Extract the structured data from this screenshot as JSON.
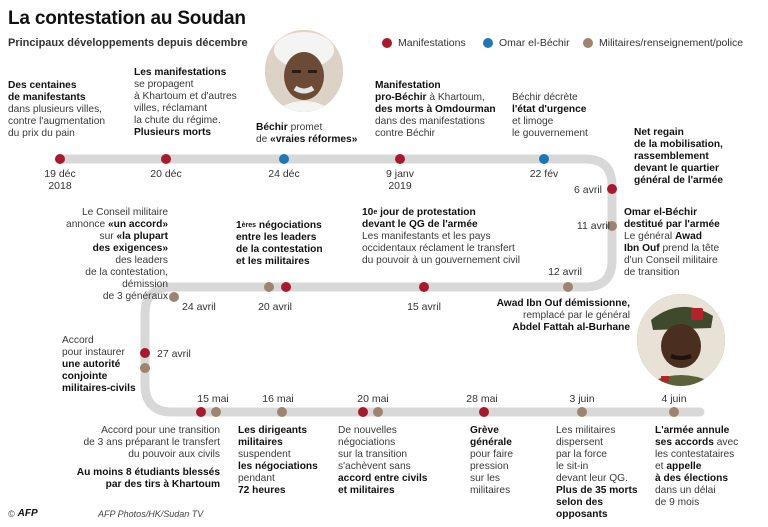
{
  "header": {
    "title": "La contestation au Soudan",
    "subtitle": "Principaux développements depuis décembre"
  },
  "legend": [
    {
      "label": "Manifestations",
      "color": "#a6192e"
    },
    {
      "label": "Omar el-Béchir",
      "color": "#1f77b4"
    },
    {
      "label": "Militaires/renseignement/police",
      "color": "#9e8470"
    }
  ],
  "colors": {
    "line": "#d8d8d8",
    "manifestation": "#a6192e",
    "bechir": "#1f77b4",
    "militaire": "#9e8470"
  },
  "dates": {
    "d19dec": "19 déc",
    "d2018": "2018",
    "d20dec": "20 déc",
    "d24dec": "24 déc",
    "d9janv": "9 janv",
    "d2019": "2019",
    "d22fev": "22 fév",
    "d6avril": "6 avril",
    "d11avril": "11 avril",
    "d12avril": "12 avril",
    "d15avril": "15 avril",
    "d20avril": "20 avril",
    "d24avril": "24 avril",
    "d27avril": "27 avril",
    "d15mai": "15 mai",
    "d16mai": "16 mai",
    "d20mai": "20 mai",
    "d28mai": "28 mai",
    "d3juin": "3 juin",
    "d4juin": "4 juin"
  },
  "events": {
    "e19dec": {
      "b1": "Des centaines",
      "b2": "de manifestants",
      "t3": "dans plusieurs villes,",
      "t4": "contre l'augmentation",
      "t5": "du prix du pain"
    },
    "e20dec": {
      "b1": "Les manifestations",
      "t2": "se propagent",
      "t3": "à Khartoum et d'autres",
      "t4": "villes, réclamant",
      "t5": "la chute du régime.",
      "b6": "Plusieurs morts"
    },
    "e24dec": {
      "b1": "Béchir",
      "t1": "promet",
      "t2": "de ",
      "b2": "«vraies réformes»"
    },
    "e9janv": {
      "b1": "Manifestation",
      "b2": "pro-Béchir",
      "t2": "à Khartoum,",
      "b3": "des morts à Omdourman",
      "t4": "dans des manifestations",
      "t5": "contre Béchir"
    },
    "e22fev": {
      "t1": "Béchir décrète",
      "b2": "l'état d'urgence",
      "t3": "et limoge",
      "t4": "le gouvernement"
    },
    "e6avril": {
      "b1": "Net regain",
      "b2": "de la mobilisation,",
      "b3": "rassemblement",
      "b4": "devant le quartier",
      "b5": "général de l'armée"
    },
    "e11avril": {
      "b1": "Omar el-Béchir",
      "b2": "destitué par l'armée",
      "t3": "Le général ",
      "b3": "Awad",
      "b4": "Ibn Ouf",
      "t4": " prend la tête",
      "t5": "d'un Conseil militaire",
      "t6": "de transition"
    },
    "e12avril": {
      "b1": "Awad Ibn Ouf démissionne,",
      "t2": "remplacé par le général",
      "b3": "Abdel Fattah al-Burhane"
    },
    "e15avril": {
      "b1a": "10",
      "sup": "e",
      "b1b": " jour de protestation",
      "b2": "devant le QG de l'armée",
      "t3": "Les manifestants et les pays",
      "t4": "occidentaux réclament le transfert",
      "t5": "du pouvoir à un gouvernement civil"
    },
    "e20avril": {
      "b1a": "1",
      "sup": "ères",
      "b1b": " négociations",
      "b2": "entre les leaders",
      "b3": "de la contestation",
      "b4": "et les militaires"
    },
    "e24avril": {
      "t1": "Le Conseil militaire",
      "t2": "annonce ",
      "b2": "«un accord»",
      "t3": "sur ",
      "b3": "«la plupart",
      "b4": "des exigences»",
      "t5": "des leaders",
      "t6": "de la contestation,",
      "t7": "démission",
      "t8": "de 3 généraux"
    },
    "e27avril": {
      "t1": "Accord",
      "t2": "pour instaurer",
      "b3": "une autorité",
      "b4": "conjointe",
      "b5": "militaires-civils"
    },
    "e15mai": {
      "t1": "Accord pour une transition",
      "t2": "de 3 ans préparant le transfert",
      "t3": "du pouvoir aux civils",
      "b4": "Au moins 8 étudiants blessés",
      "b5": "par des tirs à Khartoum"
    },
    "e16mai": {
      "b1": "Les dirigeants",
      "b2": "militaires",
      "t3": "suspendent",
      "b4": "les négociations",
      "t5": "pendant",
      "b6": "72 heures"
    },
    "e20mai": {
      "t1": "De nouvelles",
      "t2": "négociations",
      "t3": "sur la transition",
      "t4": "s'achèvent sans",
      "b5": "accord entre civils",
      "b6": "et militaires"
    },
    "e28mai": {
      "b1": "Grève",
      "b2": "générale",
      "t3": "pour faire",
      "t4": "pression",
      "t5": "sur les",
      "t6": "militaires"
    },
    "e3juin": {
      "t1": "Les militaires",
      "t2": "dispersent",
      "t3": "par la force",
      "t4": "le sit-in",
      "t5": "devant leur QG.",
      "b6": "Plus de 35 morts",
      "b7": "selon des",
      "b8": "opposants"
    },
    "e4juin": {
      "b1": "L'armée annule",
      "b2": "ses accords",
      "t2": " avec",
      "t3": "les contestataires",
      "t4": "et ",
      "b4": "appelle",
      "b5": "à des élections",
      "t6": "dans un délai",
      "t7": "de 9 mois"
    }
  },
  "footer": {
    "copyright": "©",
    "logo": "AFP",
    "credit": "AFP Photos/HK/Sudan TV"
  }
}
